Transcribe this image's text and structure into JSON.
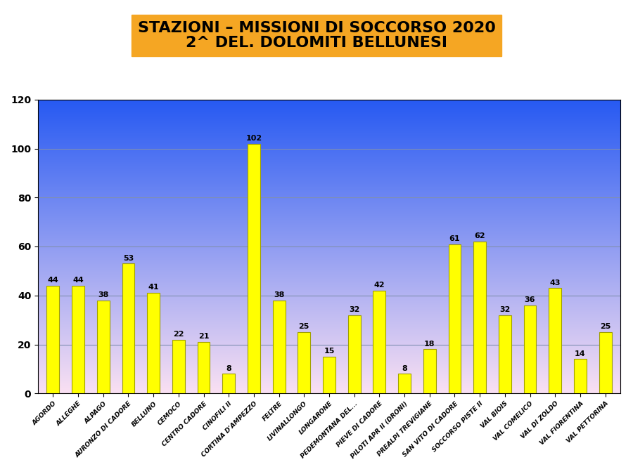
{
  "chart_data": {
    "type": "bar",
    "title": "STAZIONI – MISSIONI DI SOCCORSO 2020\n2^ DEL. DOLOMITI BELLUNESI",
    "categories": [
      "AGORDO",
      "ALLEGHE",
      "ALPAGO",
      "AURONZO DI CADORE",
      "BELLUNO",
      "CEMOCO",
      "CENTRO CADORE",
      "CINOFILI II",
      "CORTINA D'AMPEZZO",
      "FELTRE",
      "LIVINALLONGO",
      "LONGARONE",
      "PEDEMONTANA DEL...",
      "PIEVE DI CADORE",
      "PILOTI APR II (DRONI)",
      "PREALPI TREVIGIANE",
      "SAN VITO DI CADORE",
      "SOCCORSO PISTE II",
      "VAL BIOIS",
      "VAL COMELICO",
      "VAL DI ZOLDO",
      "VAL FIORENTINA",
      "VAL PETTORINA"
    ],
    "values": [
      44,
      44,
      38,
      53,
      41,
      22,
      21,
      8,
      102,
      38,
      25,
      15,
      32,
      42,
      8,
      18,
      61,
      62,
      32,
      36,
      43,
      14,
      25
    ],
    "color": "#ffff00",
    "ylim": [
      0,
      120
    ],
    "yticks": [
      0,
      20,
      40,
      60,
      80,
      100,
      120
    ],
    "grid": true,
    "data_labels": true
  }
}
